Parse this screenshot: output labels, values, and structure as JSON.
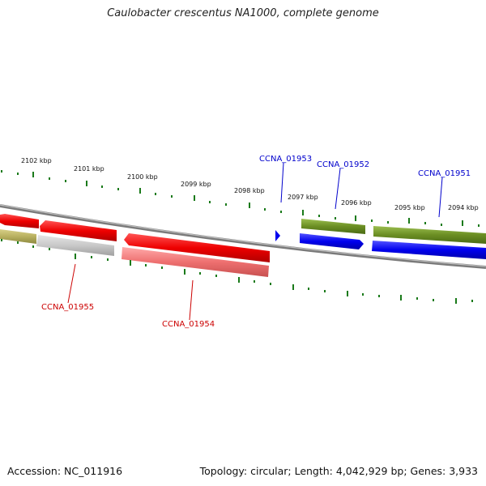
{
  "title": "Caulobacter crescentus NA1000, complete genome",
  "ticks": [
    "2102 kbp",
    "2101 kbp",
    "2100 kbp",
    "2099 kbp",
    "2098 kbp",
    "2097 kbp",
    "2096 kbp",
    "2095 kbp",
    "2094 kbp"
  ],
  "genes": {
    "g1953": "CCNA_01953",
    "g1952": "CCNA_01952",
    "g1951": "CCNA_01951",
    "g1955": "CCNA_01955",
    "g1954": "CCNA_01954"
  },
  "colors": {
    "forward_strand": "#0000ee",
    "reverse_strand": "#ee0000",
    "forward_label": "#0000cc",
    "reverse_label": "#cc0000",
    "ruler": "#1a7a1a",
    "backbone": "#888888",
    "olive": "#6b8e23",
    "khaki": "#b8b060",
    "grey": "#c8c8c8",
    "pink": "#ee7070"
  },
  "footer": {
    "accession": "Accession: NC_011916",
    "summary": "Topology: circular; Length: 4,042,929 bp; Genes: 3,933"
  }
}
